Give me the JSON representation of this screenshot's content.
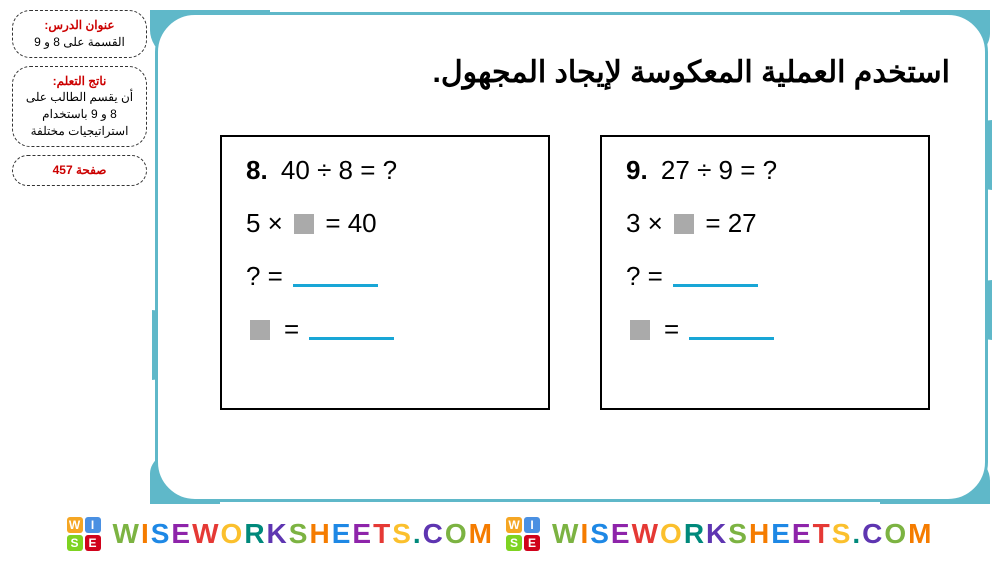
{
  "sidebar": {
    "cloud1": {
      "title": "عنوان الدرس:",
      "body": "القسمة على 8 و 9"
    },
    "cloud2": {
      "title": "ناتج التعلم:",
      "body": "أن يقسم الطالب على 8 و 9 باستخدام استراتيجيات مختلفة"
    },
    "cloud3": {
      "page": "صفحة 457"
    }
  },
  "main_title": "استخدم العملية المعكوسة لإيجاد المجهول.",
  "problems": {
    "p8": {
      "number": "8.",
      "division": "40 ÷ 8 = ?",
      "inverse_left": "5 × ",
      "inverse_right": " = 40",
      "ans1": "? =",
      "ans2_right": "="
    },
    "p9": {
      "number": "9.",
      "division": "27 ÷ 9 = ?",
      "inverse_left": "3 × ",
      "inverse_right": " = 27",
      "ans1": "? =",
      "ans2_right": "="
    }
  },
  "footer": {
    "brand": "WISEWORKSHEETS.COM",
    "logo": {
      "w": "W",
      "i": "I",
      "s": "S",
      "e": "E"
    }
  },
  "colors": {
    "frame": "#5fb8c9",
    "underline": "#18a6d6",
    "red": "#c00",
    "gray_square": "#aaa"
  }
}
